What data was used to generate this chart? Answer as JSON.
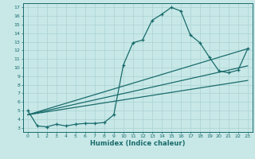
{
  "xlabel": "Humidex (Indice chaleur)",
  "bg_color": "#c8e8e8",
  "grid_color": "#b0d4d4",
  "line_color": "#1a6b6b",
  "xlim": [
    -0.5,
    23.5
  ],
  "ylim": [
    2.5,
    17.5
  ],
  "xticks": [
    0,
    1,
    2,
    3,
    4,
    5,
    6,
    7,
    8,
    9,
    10,
    11,
    12,
    13,
    14,
    15,
    16,
    17,
    18,
    19,
    20,
    21,
    22,
    23
  ],
  "yticks": [
    3,
    4,
    5,
    6,
    7,
    8,
    9,
    10,
    11,
    12,
    13,
    14,
    15,
    16,
    17
  ],
  "curve1_x": [
    0,
    1,
    2,
    3,
    4,
    5,
    6,
    7,
    8,
    9,
    10,
    11,
    12,
    13,
    14,
    15,
    16,
    17,
    18,
    19,
    20,
    21,
    22,
    23
  ],
  "curve1_y": [
    5.0,
    3.2,
    3.1,
    3.4,
    3.2,
    3.4,
    3.5,
    3.5,
    3.6,
    4.5,
    10.3,
    12.9,
    13.2,
    15.5,
    16.2,
    17.0,
    16.6,
    13.8,
    12.9,
    11.2,
    9.6,
    9.4,
    9.7,
    12.2
  ],
  "line2_x": [
    0,
    23
  ],
  "line2_y": [
    4.5,
    12.2
  ],
  "line3_x": [
    0,
    23
  ],
  "line3_y": [
    4.5,
    10.2
  ],
  "line4_x": [
    0,
    23
  ],
  "line4_y": [
    4.5,
    8.5
  ]
}
